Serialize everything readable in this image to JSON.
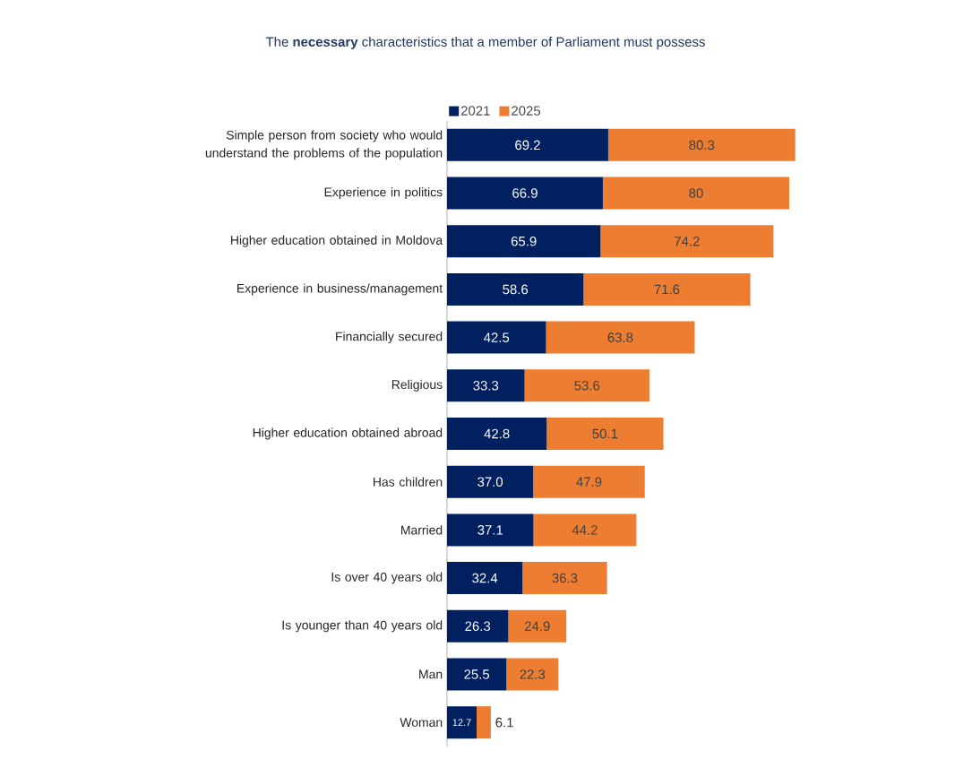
{
  "chart_data": {
    "type": "bar",
    "orientation": "horizontal",
    "stacked": true,
    "title": "The **necessary** characteristics that a member of Parliament must possess",
    "categories": [
      "Simple person from society who would understand the problems of the population",
      "Experience in politics",
      "Higher education obtained in Moldova",
      "Experience in business/management",
      "Financially secured",
      "Religious",
      "Higher education obtained abroad",
      "Has children",
      "Married",
      "Is over 40 years old",
      "Is younger than 40 years old",
      "Man",
      "Woman"
    ],
    "series": [
      {
        "name": "2021",
        "color": "#002060",
        "values": [
          69.2,
          66.9,
          65.9,
          58.6,
          42.5,
          33.3,
          42.8,
          37.0,
          37.1,
          32.4,
          26.3,
          25.5,
          12.7
        ],
        "value_labels": [
          "69.2",
          "66.9",
          "65.9",
          "58.6",
          "42.5",
          "33.3",
          "42.8",
          "37.0",
          "37.1",
          "32.4",
          "26.3",
          "25.5",
          "12.7"
        ]
      },
      {
        "name": "2025",
        "color": "#ed7d31",
        "values": [
          80.3,
          80,
          74.2,
          71.6,
          63.8,
          53.6,
          50.1,
          47.9,
          44.2,
          36.3,
          24.9,
          22.3,
          6.1
        ],
        "value_labels": [
          "80.3",
          "80",
          "74.2",
          "71.6",
          "63.8",
          "53.6",
          "50.1",
          "47.9",
          "44.2",
          "36.3",
          "24.9",
          "22.3",
          "6.1"
        ]
      }
    ],
    "data_labels": true,
    "legend": "top"
  }
}
